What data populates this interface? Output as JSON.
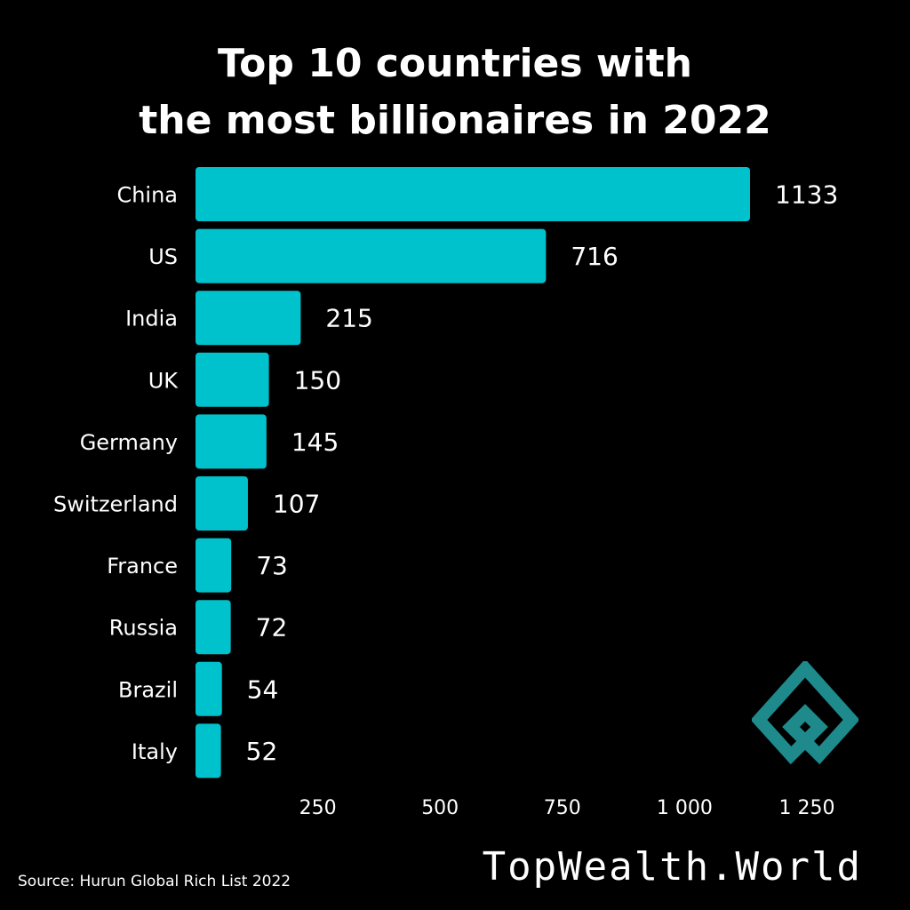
{
  "title": {
    "line1": "Top 10 countries with",
    "line2": "the most billionaires in 2022"
  },
  "chart_data": {
    "type": "bar",
    "orientation": "horizontal",
    "categories": [
      "China",
      "US",
      "India",
      "UK",
      "Germany",
      "Switzerland",
      "France",
      "Russia",
      "Brazil",
      "Italy"
    ],
    "values": [
      1133,
      716,
      215,
      150,
      145,
      107,
      73,
      72,
      54,
      52
    ],
    "value_labels": [
      "1133",
      "716",
      "215",
      "150",
      "145",
      "107",
      "73",
      "72",
      "54",
      "52"
    ],
    "x_ticks": [
      250,
      500,
      750,
      1000,
      1250
    ],
    "x_tick_labels": [
      "250",
      "500",
      "750",
      "1 000",
      "1 250"
    ],
    "xlim": [
      0,
      1250
    ],
    "grid": false,
    "bar_color": "#00C2CC",
    "background_color": "#000000"
  },
  "source": "Source: Hurun Global Rich List 2022",
  "brand": "TopWealth.World",
  "logo": {
    "icon": "diamond-logo-icon",
    "color": "#1E8A8C"
  }
}
